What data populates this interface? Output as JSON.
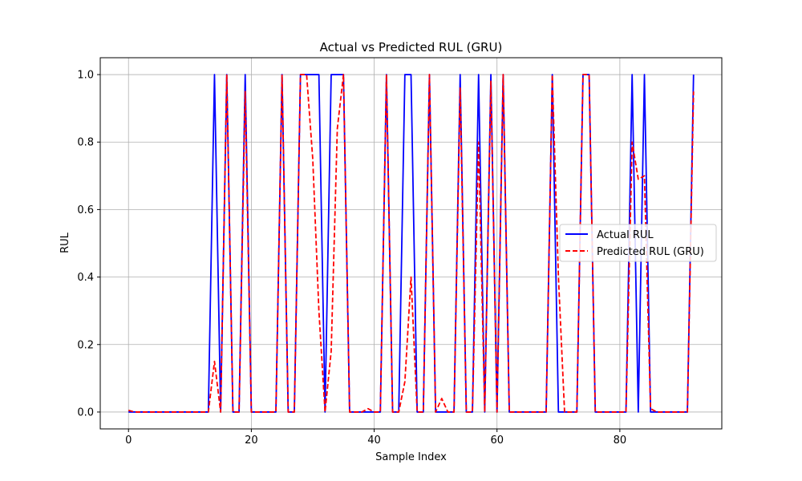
{
  "chart_data": {
    "type": "line",
    "title": "Actual vs Predicted RUL (GRU)",
    "xlabel": "Sample Index",
    "ylabel": "RUL",
    "xlim": [
      -4.6,
      96.6
    ],
    "ylim": [
      -0.05,
      1.05
    ],
    "xticks": [
      0,
      20,
      40,
      60,
      80
    ],
    "yticks": [
      0.0,
      0.2,
      0.4,
      0.6,
      0.8,
      1.0
    ],
    "xtick_labels": [
      "0",
      "20",
      "40",
      "60",
      "80"
    ],
    "ytick_labels": [
      "0.0",
      "0.2",
      "0.4",
      "0.6",
      "0.8",
      "1.0"
    ],
    "grid": true,
    "legend_position": "center-right",
    "series": [
      {
        "name": "Actual RUL",
        "color": "#0000ff",
        "style": "solid",
        "x": [
          0,
          1,
          2,
          3,
          4,
          5,
          6,
          7,
          8,
          9,
          10,
          11,
          12,
          13,
          14,
          15,
          16,
          17,
          18,
          19,
          20,
          21,
          22,
          23,
          24,
          25,
          26,
          27,
          28,
          29,
          30,
          31,
          32,
          33,
          34,
          35,
          36,
          37,
          38,
          39,
          40,
          41,
          42,
          43,
          44,
          45,
          46,
          47,
          48,
          49,
          50,
          51,
          52,
          53,
          54,
          55,
          56,
          57,
          58,
          59,
          60,
          61,
          62,
          63,
          64,
          65,
          66,
          67,
          68,
          69,
          70,
          71,
          72,
          73,
          74,
          75,
          76,
          77,
          78,
          79,
          80,
          81,
          82,
          83,
          84,
          85,
          86,
          87,
          88,
          89,
          90,
          91,
          92
        ],
        "y": [
          0,
          0,
          0,
          0,
          0,
          0,
          0,
          0,
          0,
          0,
          0,
          0,
          0,
          0,
          1,
          0,
          1,
          0,
          0,
          1,
          0,
          0,
          0,
          0,
          0,
          1,
          0,
          0,
          1,
          1,
          1,
          1,
          0,
          1,
          1,
          1,
          0,
          0,
          0,
          0,
          0,
          0,
          1,
          0,
          0,
          1,
          1,
          0,
          0,
          1,
          0,
          0,
          0,
          0,
          1,
          0,
          0,
          1,
          0,
          1,
          0,
          1,
          0,
          0,
          0,
          0,
          0,
          0,
          0,
          1,
          0,
          0,
          0,
          0,
          1,
          1,
          0,
          0,
          0,
          0,
          0,
          0,
          1,
          0,
          1,
          0,
          0,
          0,
          0,
          0,
          0,
          0,
          1
        ]
      },
      {
        "name": "Predicted RUL (GRU)",
        "color": "#ff0000",
        "style": "dashed",
        "x": [
          0,
          1,
          2,
          3,
          4,
          5,
          6,
          7,
          8,
          9,
          10,
          11,
          12,
          13,
          14,
          15,
          16,
          17,
          18,
          19,
          20,
          21,
          22,
          23,
          24,
          25,
          26,
          27,
          28,
          29,
          30,
          31,
          32,
          33,
          34,
          35,
          36,
          37,
          38,
          39,
          40,
          41,
          42,
          43,
          44,
          45,
          46,
          47,
          48,
          49,
          50,
          51,
          52,
          53,
          54,
          55,
          56,
          57,
          58,
          59,
          60,
          61,
          62,
          63,
          64,
          65,
          66,
          67,
          68,
          69,
          70,
          71,
          72,
          73,
          74,
          75,
          76,
          77,
          78,
          79,
          80,
          81,
          82,
          83,
          84,
          85,
          86,
          87,
          88,
          89,
          90,
          91,
          92
        ],
        "y": [
          0.005,
          0,
          0,
          0,
          0,
          0,
          0,
          0,
          0,
          0,
          0,
          0,
          0,
          0,
          0.15,
          0,
          1,
          0,
          0,
          0.95,
          0,
          0,
          0,
          0,
          0,
          1,
          0,
          0,
          1,
          1,
          0.75,
          0.3,
          0,
          0.18,
          0.84,
          1,
          0,
          0,
          0,
          0.01,
          0,
          0,
          1,
          0,
          0,
          0.09,
          0.4,
          0,
          0,
          1,
          0,
          0.04,
          0,
          0,
          0.96,
          0,
          0,
          0.8,
          0,
          0.98,
          0,
          1,
          0,
          0,
          0,
          0,
          0,
          0,
          0,
          1,
          0.4,
          0,
          0,
          0,
          1,
          1,
          0,
          0,
          0,
          0,
          0,
          0,
          0.8,
          0.69,
          0.7,
          0.01,
          0,
          0,
          0,
          0,
          0,
          0,
          0.95
        ]
      }
    ]
  }
}
